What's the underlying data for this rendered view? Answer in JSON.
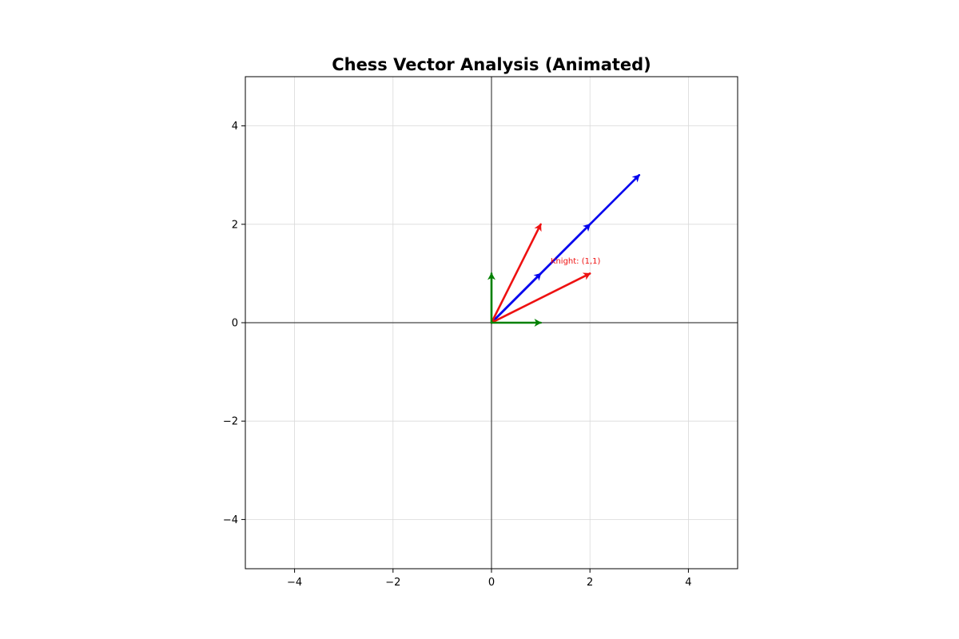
{
  "chart_data": {
    "type": "vector",
    "title": "Chess Vector Analysis (Animated)",
    "xlabel": "",
    "ylabel": "",
    "xlim": [
      -5,
      5
    ],
    "ylim": [
      -5,
      5
    ],
    "x_ticks": [
      -4,
      -2,
      0,
      2,
      4
    ],
    "y_ticks": [
      -4,
      -2,
      0,
      2,
      4
    ],
    "x_tick_labels": [
      "−4",
      "−2",
      "0",
      "2",
      "4"
    ],
    "y_tick_labels": [
      "−4",
      "−2",
      "0",
      "2",
      "4"
    ],
    "grid": true,
    "axes_lines_at_zero": true,
    "vectors": [
      {
        "color": "#0000ee",
        "from": [
          0,
          0
        ],
        "to": [
          1,
          1
        ]
      },
      {
        "color": "#0000ee",
        "from": [
          0,
          0
        ],
        "to": [
          2,
          2
        ]
      },
      {
        "color": "#0000ee",
        "from": [
          0,
          0
        ],
        "to": [
          3,
          3
        ]
      },
      {
        "color": "#ee1111",
        "from": [
          0,
          0
        ],
        "to": [
          1,
          2
        ]
      },
      {
        "color": "#ee1111",
        "from": [
          0,
          0
        ],
        "to": [
          2,
          1
        ]
      },
      {
        "color": "#008000",
        "from": [
          0,
          0
        ],
        "to": [
          0,
          1
        ]
      },
      {
        "color": "#008000",
        "from": [
          0,
          0
        ],
        "to": [
          1,
          0
        ]
      }
    ],
    "annotations": [
      {
        "text": "Knight: (1,1)",
        "x": 1.2,
        "y": 1.2,
        "color": "#ee1111"
      }
    ]
  }
}
